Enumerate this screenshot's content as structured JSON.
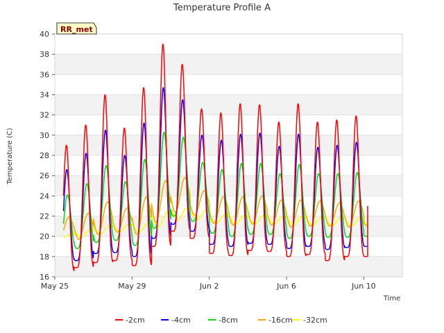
{
  "chart_data": {
    "type": "line",
    "title": "Temperature Profile A",
    "xlabel": "Time",
    "ylabel": "Temperature (C)",
    "badge": "RR_met",
    "xlim": [
      "2023-05-25",
      "2023-06-12"
    ],
    "ylim": [
      16,
      40
    ],
    "yticks": [
      16,
      18,
      20,
      22,
      24,
      26,
      28,
      30,
      32,
      34,
      36,
      38,
      40
    ],
    "xticks": [
      {
        "date": "2023-05-25",
        "label": "May 25"
      },
      {
        "date": "2023-05-29",
        "label": "May 29"
      },
      {
        "date": "2023-06-02",
        "label": "Jun 2"
      },
      {
        "date": "2023-06-06",
        "label": "Jun 6"
      },
      {
        "date": "2023-06-10",
        "label": "Jun 10"
      }
    ],
    "grid": true,
    "legend_position": "bottom",
    "days": [
      "May 25",
      "May 26",
      "May 27",
      "May 28",
      "May 29",
      "May 30",
      "May 31",
      "Jun 1",
      "Jun 2",
      "Jun 3",
      "Jun 4",
      "Jun 5",
      "Jun 6",
      "Jun 7",
      "Jun 8",
      "Jun 9",
      "Jun 10"
    ],
    "series": [
      {
        "name": "-2cm",
        "color": "#ff0000",
        "daily_max": [
          29.0,
          31.0,
          34.0,
          30.7,
          34.7,
          39.0,
          37.0,
          32.6,
          32.2,
          33.1,
          33.0,
          31.3,
          33.1,
          31.3,
          31.5,
          31.9,
          23.0
        ],
        "daily_min": [
          16.5,
          16.9,
          17.4,
          17.6,
          17.1,
          19.0,
          20.5,
          19.8,
          18.3,
          18.1,
          18.6,
          18.5,
          18.0,
          18.2,
          17.6,
          18.0,
          18.0
        ]
      },
      {
        "name": "-4cm",
        "color": "#0000ff",
        "daily_max": [
          26.6,
          28.2,
          30.5,
          28.0,
          31.2,
          34.7,
          33.5,
          30.0,
          29.5,
          30.1,
          30.2,
          28.9,
          30.1,
          28.8,
          29.0,
          29.3,
          21.5
        ],
        "daily_min": [
          17.5,
          17.6,
          18.3,
          18.4,
          18.0,
          19.8,
          21.2,
          20.5,
          19.2,
          19.0,
          19.3,
          19.2,
          18.8,
          19.0,
          18.7,
          18.9,
          19.0
        ]
      },
      {
        "name": "-8cm",
        "color": "#00dd00",
        "daily_max": [
          24.1,
          25.2,
          27.0,
          25.4,
          27.6,
          30.3,
          29.8,
          27.3,
          26.6,
          27.2,
          27.2,
          26.2,
          27.1,
          26.2,
          26.2,
          26.3,
          21.2
        ],
        "daily_min": [
          18.7,
          18.8,
          19.4,
          19.6,
          19.1,
          20.8,
          22.0,
          21.5,
          20.3,
          20.0,
          20.2,
          20.2,
          19.8,
          20.0,
          19.9,
          19.9,
          20.0
        ]
      },
      {
        "name": "-16cm",
        "color": "#ffa500",
        "daily_max": [
          21.9,
          22.3,
          23.4,
          22.8,
          23.9,
          25.5,
          25.8,
          24.5,
          23.9,
          23.9,
          24.0,
          23.6,
          23.6,
          23.5,
          23.3,
          23.5,
          21.6
        ],
        "daily_min": [
          19.8,
          19.7,
          20.2,
          20.4,
          20.2,
          21.4,
          22.4,
          22.1,
          21.3,
          21.1,
          21.2,
          21.1,
          20.9,
          21.0,
          21.0,
          20.9,
          21.0
        ]
      },
      {
        "name": "-32cm",
        "color": "#ffff00",
        "daily_max": [
          20.2,
          20.6,
          21.1,
          21.2,
          21.3,
          22.4,
          22.8,
          22.6,
          22.2,
          22.1,
          22.1,
          22.0,
          22.0,
          21.9,
          21.9,
          21.9,
          21.5
        ],
        "daily_min": [
          19.8,
          19.9,
          20.2,
          20.4,
          20.4,
          20.9,
          21.6,
          21.6,
          21.3,
          21.2,
          21.2,
          21.2,
          21.1,
          21.1,
          21.0,
          21.0,
          21.0
        ]
      }
    ]
  }
}
